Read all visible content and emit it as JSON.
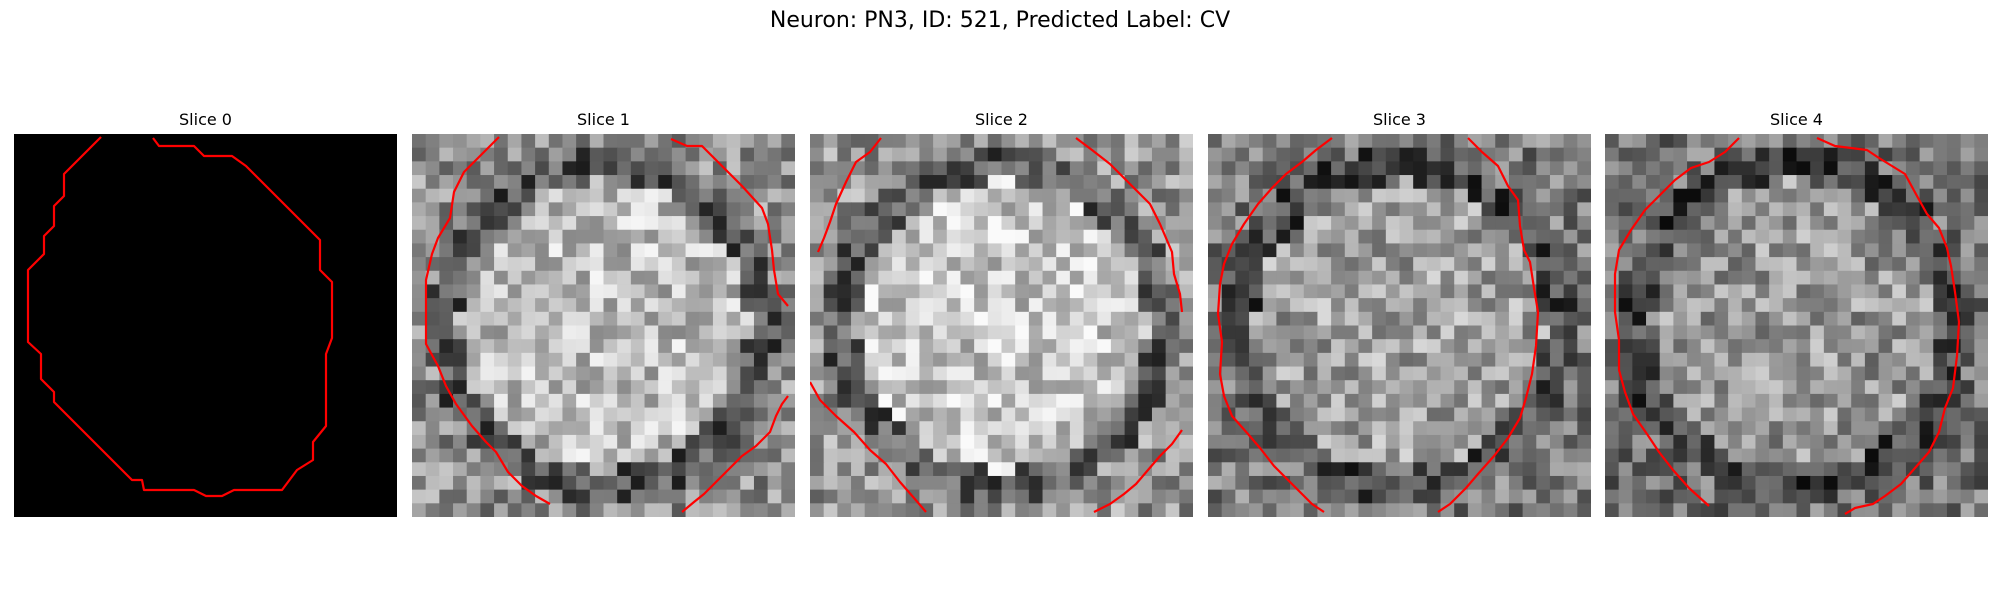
{
  "figure": {
    "title": "Neuron: PN3, ID: 521, Predicted Label: CV"
  },
  "contour_color": "#ff0000",
  "panels": [
    {
      "title": "Slice 0",
      "fill": "solid",
      "brightness": 0.0,
      "seed": 11
    },
    {
      "title": "Slice 1",
      "fill": "noise",
      "brightness": 0.78,
      "seed": 23
    },
    {
      "title": "Slice 2",
      "fill": "noise",
      "brightness": 0.82,
      "seed": 37
    },
    {
      "title": "Slice 3",
      "fill": "noise",
      "brightness": 0.66,
      "seed": 51
    },
    {
      "title": "Slice 4",
      "fill": "noise",
      "brightness": 0.62,
      "seed": 73
    }
  ]
}
